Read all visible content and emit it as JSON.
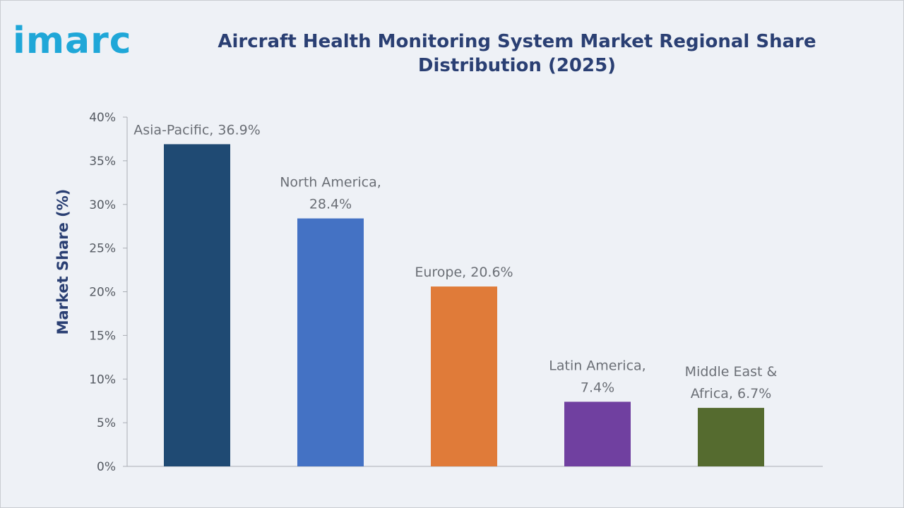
{
  "brand": {
    "logo_text": "imarc",
    "logo_color": "#1fa7d8"
  },
  "chart_data": {
    "type": "bar",
    "title": "Aircraft Health Monitoring System Market Regional Share Distribution (2025)",
    "ylabel": "Market Share (%)",
    "xlabel": "",
    "ylim": [
      0,
      40
    ],
    "yticks": [
      0,
      5,
      10,
      15,
      20,
      25,
      30,
      35,
      40
    ],
    "ytick_labels": [
      "0%",
      "5%",
      "10%",
      "15%",
      "20%",
      "25%",
      "30%",
      "35%",
      "40%"
    ],
    "grid": false,
    "categories": [
      "Asia-Pacific",
      "North America",
      "Europe",
      "Latin America",
      "Middle East & Africa"
    ],
    "values": [
      36.9,
      28.4,
      20.6,
      7.4,
      6.7
    ],
    "data_labels": [
      [
        "Asia-Pacific, 36.9%"
      ],
      [
        "North America,",
        "28.4%"
      ],
      [
        "Europe, 20.6%"
      ],
      [
        "Latin America,",
        "7.4%"
      ],
      [
        "Middle East &",
        "Africa, 6.7%"
      ]
    ],
    "colors": [
      "#1f4a73",
      "#4472c4",
      "#e07b39",
      "#7040a0",
      "#556b2f"
    ]
  }
}
